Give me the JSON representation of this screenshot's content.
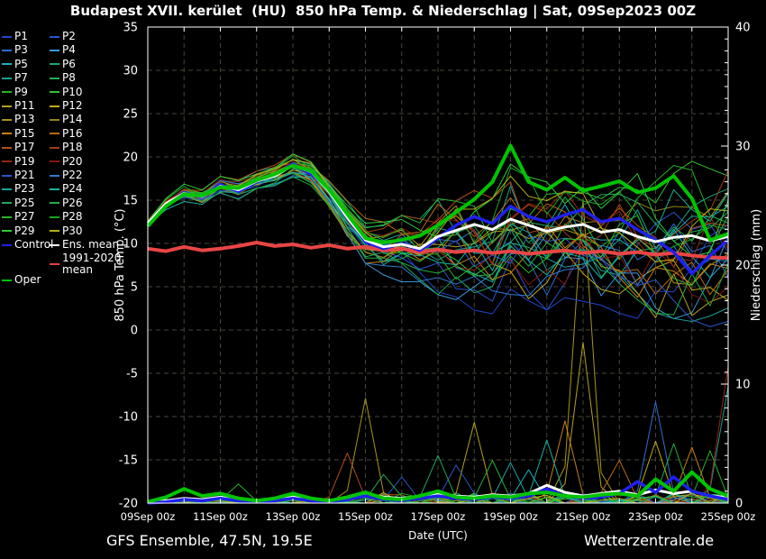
{
  "title": "Budapest XVII. kerület  (HU)  850 hPa Temp. & Niederschlag | Sat, 09Sep2023 00Z",
  "footer": {
    "left": "GFS Ensemble, 47.5N, 19.5E",
    "right": "Wetterzentrale.de"
  },
  "legend": {
    "members": [
      {
        "label": "P1",
        "color": "#2244cc"
      },
      {
        "label": "P2",
        "color": "#2952d1"
      },
      {
        "label": "P3",
        "color": "#2e6fd8"
      },
      {
        "label": "P4",
        "color": "#3a9ad9"
      },
      {
        "label": "P5",
        "color": "#19b0c4"
      },
      {
        "label": "P6",
        "color": "#17a877"
      },
      {
        "label": "P7",
        "color": "#1b9e92"
      },
      {
        "label": "P8",
        "color": "#1fae54"
      },
      {
        "label": "P9",
        "color": "#23b523"
      },
      {
        "label": "P10",
        "color": "#2fc42f"
      },
      {
        "label": "P11",
        "color": "#b5a11c"
      },
      {
        "label": "P12",
        "color": "#c4ad14"
      },
      {
        "label": "P13",
        "color": "#a8951a"
      },
      {
        "label": "P14",
        "color": "#93831a"
      },
      {
        "label": "P15",
        "color": "#c97f17"
      },
      {
        "label": "P16",
        "color": "#b76a14"
      },
      {
        "label": "P17",
        "color": "#b44f15"
      },
      {
        "label": "P18",
        "color": "#a63c12"
      },
      {
        "label": "P19",
        "color": "#97250f"
      },
      {
        "label": "P20",
        "color": "#87150c"
      },
      {
        "label": "P21",
        "color": "#2c56cd"
      },
      {
        "label": "P22",
        "color": "#2e7bd0"
      },
      {
        "label": "P23",
        "color": "#1ba3a3"
      },
      {
        "label": "P24",
        "color": "#16b39c"
      },
      {
        "label": "P25",
        "color": "#1fa95e"
      },
      {
        "label": "P26",
        "color": "#22ad42"
      },
      {
        "label": "P27",
        "color": "#25b731"
      },
      {
        "label": "P28",
        "color": "#18a521"
      },
      {
        "label": "P29",
        "color": "#2ecc3a"
      },
      {
        "label": "P30",
        "color": "#b3b317"
      }
    ],
    "specials": [
      {
        "label": "Control",
        "color": "#2020ee"
      },
      {
        "label": "Ens. mean",
        "color": "#ffffff"
      },
      {
        "label": "1991-2020 mean",
        "color": "#e84040"
      },
      {
        "label": "Oper",
        "color": "#00c400"
      }
    ]
  },
  "chart_data": {
    "type": "line",
    "title": "Budapest XVII. kerület (HU) 850 hPa Temp. & Niederschlag | Sat, 09Sep2023 00Z",
    "x_axis": {
      "label": "Date (UTC)",
      "range_days": [
        0,
        16
      ],
      "tick_days": [
        0,
        2,
        4,
        6,
        8,
        10,
        12,
        14,
        16
      ],
      "tick_labels": [
        "09Sep 00z",
        "11Sep 00z",
        "13Sep 00z",
        "15Sep 00z",
        "17Sep 00z",
        "19Sep 00z",
        "21Sep 00z",
        "23Sep 00z",
        "25Sep 00z"
      ],
      "minor_tick_every_days": 1,
      "grid": true
    },
    "y_left": {
      "label": "850 hPa Temp. (°C)",
      "min": -20,
      "max": 35,
      "tick_step": 5,
      "grid": true
    },
    "y_right": {
      "label": "Niederschlag (mm)",
      "min": 0,
      "max": 40,
      "tick_step": 10,
      "minor_tick_step": 1
    },
    "sample_step_days": 0.5,
    "series": {
      "ens_mean_temp": [
        12.3,
        14.6,
        15.8,
        15.4,
        16.6,
        16.2,
        17.2,
        17.8,
        19.0,
        18.3,
        16.0,
        13.0,
        10.4,
        9.6,
        9.9,
        9.4,
        10.8,
        11.5,
        12.2,
        11.6,
        12.8,
        12.1,
        11.4,
        11.9,
        12.2,
        11.3,
        11.6,
        10.8,
        10.2,
        10.7,
        10.9,
        10.3,
        10.8
      ],
      "control_temp": [
        12.3,
        14.5,
        15.9,
        15.3,
        16.8,
        16.0,
        17.1,
        17.9,
        19.2,
        18.0,
        16.3,
        13.2,
        10.2,
        9.4,
        10.0,
        9.2,
        10.6,
        12.1,
        13.1,
        12.3,
        14.3,
        13.1,
        12.5,
        13.3,
        13.9,
        12.5,
        12.9,
        11.6,
        10.4,
        9.0,
        6.5,
        8.6,
        10.4
      ],
      "oper_temp": [
        12.0,
        14.3,
        15.7,
        15.5,
        16.5,
        16.4,
        17.3,
        18.0,
        19.0,
        18.4,
        16.2,
        13.4,
        10.6,
        10.1,
        10.4,
        10.9,
        12.1,
        13.6,
        15.1,
        17.1,
        21.3,
        17.1,
        16.2,
        17.6,
        16.1,
        16.6,
        17.2,
        15.9,
        16.4,
        17.8,
        15.2,
        10.4,
        11.1
      ],
      "climate_mean_temp": [
        9.4,
        9.1,
        9.6,
        9.2,
        9.4,
        9.7,
        10.1,
        9.7,
        9.9,
        9.5,
        9.8,
        9.4,
        9.6,
        9.2,
        9.4,
        9.0,
        9.3,
        9.0,
        9.2,
        8.9,
        9.1,
        8.8,
        9.0,
        9.2,
        8.9,
        9.1,
        8.8,
        9.0,
        8.7,
        8.9,
        8.6,
        8.4,
        8.3
      ],
      "ensemble_min_temp": [
        11.6,
        13.6,
        14.8,
        14.4,
        15.5,
        15.0,
        16.0,
        16.6,
        17.6,
        16.6,
        14.0,
        10.6,
        7.6,
        6.0,
        5.4,
        4.5,
        3.6,
        2.6,
        2.0,
        1.6,
        3.0,
        2.6,
        2.0,
        2.6,
        3.0,
        2.0,
        1.6,
        1.0,
        0.6,
        0.0,
        -0.4,
        0.0,
        0.6
      ],
      "ensemble_max_temp": [
        13.1,
        15.5,
        16.9,
        16.4,
        17.8,
        17.4,
        18.4,
        19.1,
        20.4,
        19.5,
        17.4,
        15.0,
        13.0,
        12.6,
        13.4,
        13.0,
        15.4,
        16.0,
        16.4,
        15.5,
        19.5,
        18.0,
        17.4,
        18.0,
        18.4,
        17.4,
        18.0,
        18.4,
        17.5,
        19.4,
        19.9,
        19.0,
        20.4
      ],
      "ens_mean_precip": [
        0.1,
        0.2,
        0.4,
        0.3,
        0.5,
        0.3,
        0.2,
        0.3,
        0.5,
        0.3,
        0.2,
        0.4,
        0.8,
        0.5,
        0.4,
        0.6,
        0.8,
        0.6,
        0.5,
        0.7,
        0.6,
        0.8,
        1.5,
        0.9,
        0.6,
        0.8,
        1.0,
        0.7,
        1.1,
        0.8,
        1.0,
        0.6,
        0.5
      ],
      "control_precip": [
        0.0,
        0.1,
        0.3,
        0.2,
        0.4,
        0.2,
        0.1,
        0.2,
        0.4,
        0.2,
        0.1,
        0.3,
        0.6,
        0.3,
        0.2,
        0.4,
        0.6,
        0.4,
        0.3,
        0.5,
        0.4,
        0.6,
        1.2,
        0.6,
        0.4,
        0.5,
        0.8,
        1.8,
        0.9,
        2.2,
        1.0,
        0.6,
        0.3
      ],
      "oper_precip": [
        0.1,
        0.5,
        1.2,
        0.6,
        0.8,
        0.4,
        0.2,
        0.4,
        0.8,
        0.4,
        0.2,
        0.5,
        0.9,
        0.4,
        0.3,
        0.6,
        1.0,
        0.5,
        0.4,
        0.6,
        0.5,
        0.8,
        0.9,
        0.6,
        0.5,
        0.7,
        0.8,
        0.6,
        2.0,
        1.0,
        2.6,
        1.2,
        0.6
      ]
    },
    "precip_spikes": [
      {
        "day": 2.5,
        "mm": 1.6,
        "member": 9
      },
      {
        "day": 5.3,
        "mm": 4.2,
        "member": 17
      },
      {
        "day": 5.8,
        "mm": 8.8,
        "member": 13
      },
      {
        "day": 6.3,
        "mm": 2.4,
        "member": 25
      },
      {
        "day": 7.0,
        "mm": 2.2,
        "member": 21
      },
      {
        "day": 8.1,
        "mm": 4.0,
        "member": 25
      },
      {
        "day": 8.4,
        "mm": 3.2,
        "member": 21
      },
      {
        "day": 9.0,
        "mm": 6.8,
        "member": 11
      },
      {
        "day": 9.4,
        "mm": 3.6,
        "member": 26
      },
      {
        "day": 9.9,
        "mm": 3.4,
        "member": 23
      },
      {
        "day": 10.5,
        "mm": 2.8,
        "member": 5
      },
      {
        "day": 11.2,
        "mm": 5.3,
        "member": 24
      },
      {
        "day": 11.6,
        "mm": 6.9,
        "member": 15
      },
      {
        "day": 11.8,
        "mm": 25.5,
        "member": 13
      },
      {
        "day": 12.1,
        "mm": 13.5,
        "member": 11
      },
      {
        "day": 13.0,
        "mm": 3.6,
        "member": 16
      },
      {
        "day": 14.0,
        "mm": 5.2,
        "member": 12
      },
      {
        "day": 14.2,
        "mm": 8.5,
        "member": 3
      },
      {
        "day": 14.6,
        "mm": 5.0,
        "member": 26
      },
      {
        "day": 14.9,
        "mm": 4.7,
        "member": 15
      },
      {
        "day": 15.3,
        "mm": 4.4,
        "member": 9
      },
      {
        "day": 15.9,
        "mm": 11.5,
        "member": 19
      },
      {
        "day": 16.0,
        "mm": 9.8,
        "member": 7
      }
    ],
    "colors": {
      "background": "#000000",
      "axis": "#ffffff",
      "grid": "#46463c",
      "control": "#2020ee",
      "ens_mean": "#ffffff",
      "climate_mean": "#e84545",
      "oper": "#00c400"
    },
    "legend_position": "left"
  }
}
